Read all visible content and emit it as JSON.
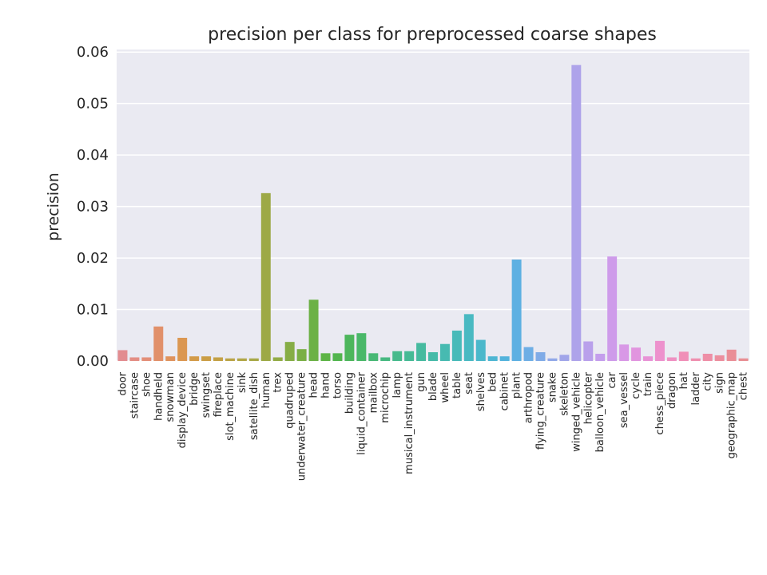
{
  "chart_data": {
    "type": "bar",
    "title": "precision per class for preprocessed coarse shapes",
    "xlabel": "",
    "ylabel": "precision",
    "ylim": [
      0,
      0.0605
    ],
    "yticks": [
      "0.00",
      "0.01",
      "0.02",
      "0.03",
      "0.04",
      "0.05",
      "0.06"
    ],
    "grid": true,
    "categories": [
      "door",
      "staircase",
      "shoe",
      "handheld",
      "snowman",
      "display_device",
      "bridge",
      "swingset",
      "fireplace",
      "slot_machine",
      "sink",
      "satellite_dish",
      "human",
      "trex",
      "quadruped",
      "underwater_creature",
      "head",
      "hand",
      "torso",
      "building",
      "liquid_container",
      "mailbox",
      "microchip",
      "lamp",
      "musical_instrument",
      "gun",
      "blade",
      "wheel",
      "table",
      "seat",
      "shelves",
      "bed",
      "cabinet",
      "plant",
      "arthropod",
      "flying_creature",
      "snake",
      "skeleton",
      "winged_vehicle",
      "helicopter",
      "balloon_vehicle",
      "car",
      "sea_vessel",
      "cycle",
      "train",
      "chess_piece",
      "dragon",
      "hat",
      "ladder",
      "city",
      "sign",
      "geographic_map",
      "chest"
    ],
    "values": [
      0.0021,
      0.0007,
      0.0007,
      0.0067,
      0.0009,
      0.0045,
      0.0009,
      0.0009,
      0.0007,
      0.0005,
      0.0005,
      0.0005,
      0.0326,
      0.0007,
      0.0037,
      0.0023,
      0.0119,
      0.0015,
      0.0015,
      0.0051,
      0.0054,
      0.0015,
      0.0007,
      0.0019,
      0.0019,
      0.0035,
      0.0017,
      0.0033,
      0.0059,
      0.0091,
      0.0041,
      0.0009,
      0.0009,
      0.0197,
      0.0027,
      0.0017,
      0.0005,
      0.0012,
      0.0575,
      0.0038,
      0.0014,
      0.0203,
      0.0032,
      0.0026,
      0.0009,
      0.0039,
      0.0007,
      0.0018,
      0.0005,
      0.0014,
      0.0011,
      0.0022,
      0.0005
    ],
    "colors": [
      "#e28c90",
      "#e38d84",
      "#e38e78",
      "#e1906a",
      "#df935e",
      "#db9752",
      "#d39b49",
      "#cb9e46",
      "#c3a146",
      "#baa346",
      "#b1a646",
      "#a7a846",
      "#9da946",
      "#92ab46",
      "#86ad46",
      "#7aaf46",
      "#6cb146",
      "#5db446",
      "#52b54e",
      "#4db65c",
      "#4ab869",
      "#48b875",
      "#47b981",
      "#47ba8c",
      "#46ba95",
      "#46ba9f",
      "#46baa8",
      "#47bab1",
      "#48bab9",
      "#49b9c2",
      "#4bb8cb",
      "#4eb6d3",
      "#53b3dc",
      "#5eb0e2",
      "#6eaee5",
      "#80abe7",
      "#91a8e8",
      "#a1a5e9",
      "#aea3ea",
      "#b9a0eb",
      "#c49eec",
      "#ce9bea",
      "#d898e6",
      "#e195df",
      "#e893d6",
      "#ed91cd",
      "#ef90c2",
      "#f08fb8",
      "#ef8faf",
      "#ee8ea6",
      "#ec8e9e",
      "#ea8e97",
      "#e88e93"
    ]
  }
}
